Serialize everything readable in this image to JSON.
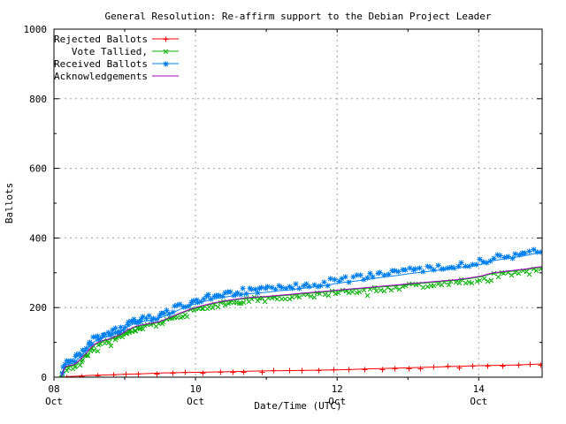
{
  "chart_data": {
    "type": "line",
    "title": "General Resolution: Re-affirm support to the Debian Project Leader",
    "xlabel": "Date/Time (UTC)",
    "ylabel": "Ballots",
    "ylim": [
      0,
      1000
    ],
    "xlim_hours": [
      0,
      165.5
    ],
    "x_origin": "Oct 08 00:00 UTC",
    "grid": "dotted-gray-at-major-ticks",
    "legend_position": "top-left-inside",
    "x_axis": {
      "ticks": [
        {
          "h": 0,
          "line1": "08",
          "line2": "Oct"
        },
        {
          "h": 48,
          "line1": "10",
          "line2": "Oct"
        },
        {
          "h": 96,
          "line1": "12",
          "line2": "Oct"
        },
        {
          "h": 144,
          "line1": "14",
          "line2": "Oct"
        }
      ],
      "minor_h": [
        24,
        72,
        120
      ]
    },
    "y_axis": {
      "ticks": [
        0,
        200,
        400,
        600,
        800,
        1000
      ],
      "minor_step": 100
    },
    "series_order": [
      "rejected",
      "tallied",
      "received",
      "acks"
    ],
    "series": {
      "rejected": {
        "name": "Rejected Ballots",
        "color": "#ff0000",
        "marker": "plus",
        "points": [
          [
            3,
            0
          ],
          [
            5,
            2
          ],
          [
            8,
            3
          ],
          [
            12,
            5
          ],
          [
            16,
            6
          ],
          [
            20,
            7
          ],
          [
            24,
            8
          ],
          [
            30,
            10
          ],
          [
            36,
            12
          ],
          [
            42,
            13
          ],
          [
            48,
            14
          ],
          [
            54,
            15
          ],
          [
            60,
            16
          ],
          [
            66,
            17
          ],
          [
            72,
            18
          ],
          [
            80,
            19
          ],
          [
            88,
            20
          ],
          [
            96,
            21
          ],
          [
            104,
            23
          ],
          [
            112,
            25
          ],
          [
            120,
            27
          ],
          [
            128,
            29
          ],
          [
            136,
            31
          ],
          [
            144,
            33
          ],
          [
            150,
            34
          ],
          [
            156,
            35
          ],
          [
            160,
            36
          ],
          [
            165.5,
            38
          ]
        ]
      },
      "tallied": {
        "name": "Vote Tallied,",
        "color": "#00b000",
        "marker": "cross",
        "points": [
          [
            2.5,
            1
          ],
          [
            3,
            10
          ],
          [
            3.5,
            22
          ],
          [
            4,
            29
          ],
          [
            5,
            31
          ],
          [
            6.5,
            33
          ],
          [
            8,
            42
          ],
          [
            9.5,
            54
          ],
          [
            11,
            68
          ],
          [
            12.5,
            83
          ],
          [
            14,
            94
          ],
          [
            15.5,
            100
          ],
          [
            17,
            104
          ],
          [
            19,
            109
          ],
          [
            21,
            115
          ],
          [
            23,
            123
          ],
          [
            25,
            134
          ],
          [
            27,
            142
          ],
          [
            29,
            147
          ],
          [
            31,
            150
          ],
          [
            33,
            153
          ],
          [
            35.5,
            157
          ],
          [
            38,
            165
          ],
          [
            40.5,
            174
          ],
          [
            43,
            183
          ],
          [
            45.5,
            191
          ],
          [
            48,
            198
          ],
          [
            51,
            205
          ],
          [
            54,
            211
          ],
          [
            57,
            216
          ],
          [
            60,
            220
          ],
          [
            64,
            225
          ],
          [
            68,
            228
          ],
          [
            72,
            230
          ],
          [
            76,
            233
          ],
          [
            80,
            236
          ],
          [
            84,
            239
          ],
          [
            88,
            242
          ],
          [
            92,
            245
          ],
          [
            96,
            248
          ],
          [
            100,
            251
          ],
          [
            104,
            254
          ],
          [
            108,
            257
          ],
          [
            112,
            260
          ],
          [
            116,
            263
          ],
          [
            120,
            266
          ],
          [
            124,
            269
          ],
          [
            128,
            272
          ],
          [
            132,
            275
          ],
          [
            136,
            278
          ],
          [
            140,
            282
          ],
          [
            143,
            286
          ],
          [
            145,
            289
          ],
          [
            147,
            294
          ],
          [
            149,
            298
          ],
          [
            152,
            301
          ],
          [
            156,
            305
          ],
          [
            160,
            309
          ],
          [
            163,
            313
          ],
          [
            165.5,
            317
          ]
        ]
      },
      "received": {
        "name": "Received Ballots",
        "color": "#0080f0",
        "marker": "star",
        "points": [
          [
            2.5,
            6
          ],
          [
            3,
            16
          ],
          [
            3.5,
            28
          ],
          [
            4,
            35
          ],
          [
            5,
            38
          ],
          [
            6.5,
            40
          ],
          [
            8,
            50
          ],
          [
            9.5,
            63
          ],
          [
            11,
            78
          ],
          [
            12.5,
            93
          ],
          [
            14,
            104
          ],
          [
            15.5,
            110
          ],
          [
            17,
            114
          ],
          [
            19,
            119
          ],
          [
            21,
            126
          ],
          [
            23,
            134
          ],
          [
            25,
            145
          ],
          [
            27,
            153
          ],
          [
            29,
            158
          ],
          [
            31,
            161
          ],
          [
            33,
            164
          ],
          [
            35.5,
            169
          ],
          [
            38,
            177
          ],
          [
            40.5,
            186
          ],
          [
            43,
            196
          ],
          [
            45.5,
            204
          ],
          [
            48,
            211
          ],
          [
            51,
            218
          ],
          [
            54,
            224
          ],
          [
            57,
            229
          ],
          [
            60,
            233
          ],
          [
            64,
            238
          ],
          [
            68,
            241
          ],
          [
            72,
            244
          ],
          [
            76,
            248
          ],
          [
            80,
            251
          ],
          [
            84,
            255
          ],
          [
            88,
            259
          ],
          [
            92,
            263
          ],
          [
            96,
            270
          ],
          [
            100,
            274
          ],
          [
            104,
            278
          ],
          [
            108,
            283
          ],
          [
            112,
            288
          ],
          [
            116,
            292
          ],
          [
            120,
            297
          ],
          [
            124,
            301
          ],
          [
            128,
            305
          ],
          [
            132,
            309
          ],
          [
            136,
            313
          ],
          [
            140,
            317
          ],
          [
            143,
            321
          ],
          [
            145,
            324
          ],
          [
            147,
            330
          ],
          [
            149,
            335
          ],
          [
            152,
            339
          ],
          [
            156,
            344
          ],
          [
            160,
            350
          ],
          [
            163,
            355
          ],
          [
            165.5,
            360
          ]
        ]
      },
      "acks": {
        "name": "Acknowledgements",
        "color": "#aa00cc",
        "marker": "none",
        "points": [
          [
            2.5,
            2
          ],
          [
            3,
            12
          ],
          [
            3.5,
            24
          ],
          [
            4,
            31
          ],
          [
            5,
            33
          ],
          [
            6.5,
            35
          ],
          [
            8,
            44
          ],
          [
            9.5,
            56
          ],
          [
            11,
            70
          ],
          [
            12.5,
            85
          ],
          [
            14,
            96
          ],
          [
            15.5,
            102
          ],
          [
            17,
            106
          ],
          [
            19,
            111
          ],
          [
            21,
            117
          ],
          [
            23,
            125
          ],
          [
            25,
            136
          ],
          [
            27,
            144
          ],
          [
            29,
            149
          ],
          [
            31,
            152
          ],
          [
            33,
            155
          ],
          [
            35.5,
            159
          ],
          [
            38,
            167
          ],
          [
            40.5,
            176
          ],
          [
            43,
            185
          ],
          [
            45.5,
            193
          ],
          [
            48,
            200
          ],
          [
            51,
            207
          ],
          [
            54,
            213
          ],
          [
            57,
            218
          ],
          [
            60,
            222
          ],
          [
            64,
            227
          ],
          [
            68,
            230
          ],
          [
            72,
            232
          ],
          [
            76,
            235
          ],
          [
            80,
            238
          ],
          [
            84,
            241
          ],
          [
            88,
            244
          ],
          [
            92,
            247
          ],
          [
            96,
            250
          ],
          [
            100,
            253
          ],
          [
            104,
            256
          ],
          [
            108,
            259
          ],
          [
            112,
            262
          ],
          [
            116,
            265
          ],
          [
            120,
            268
          ],
          [
            124,
            271
          ],
          [
            128,
            274
          ],
          [
            132,
            277
          ],
          [
            136,
            280
          ],
          [
            140,
            284
          ],
          [
            143,
            288
          ],
          [
            145,
            291
          ],
          [
            147,
            296
          ],
          [
            149,
            300
          ],
          [
            152,
            303
          ],
          [
            156,
            307
          ],
          [
            160,
            311
          ],
          [
            163,
            315
          ],
          [
            165.5,
            318
          ]
        ]
      }
    },
    "colors": {
      "grid": "#a0a0a0",
      "axis": "#000000",
      "background": "#ffffff"
    }
  }
}
